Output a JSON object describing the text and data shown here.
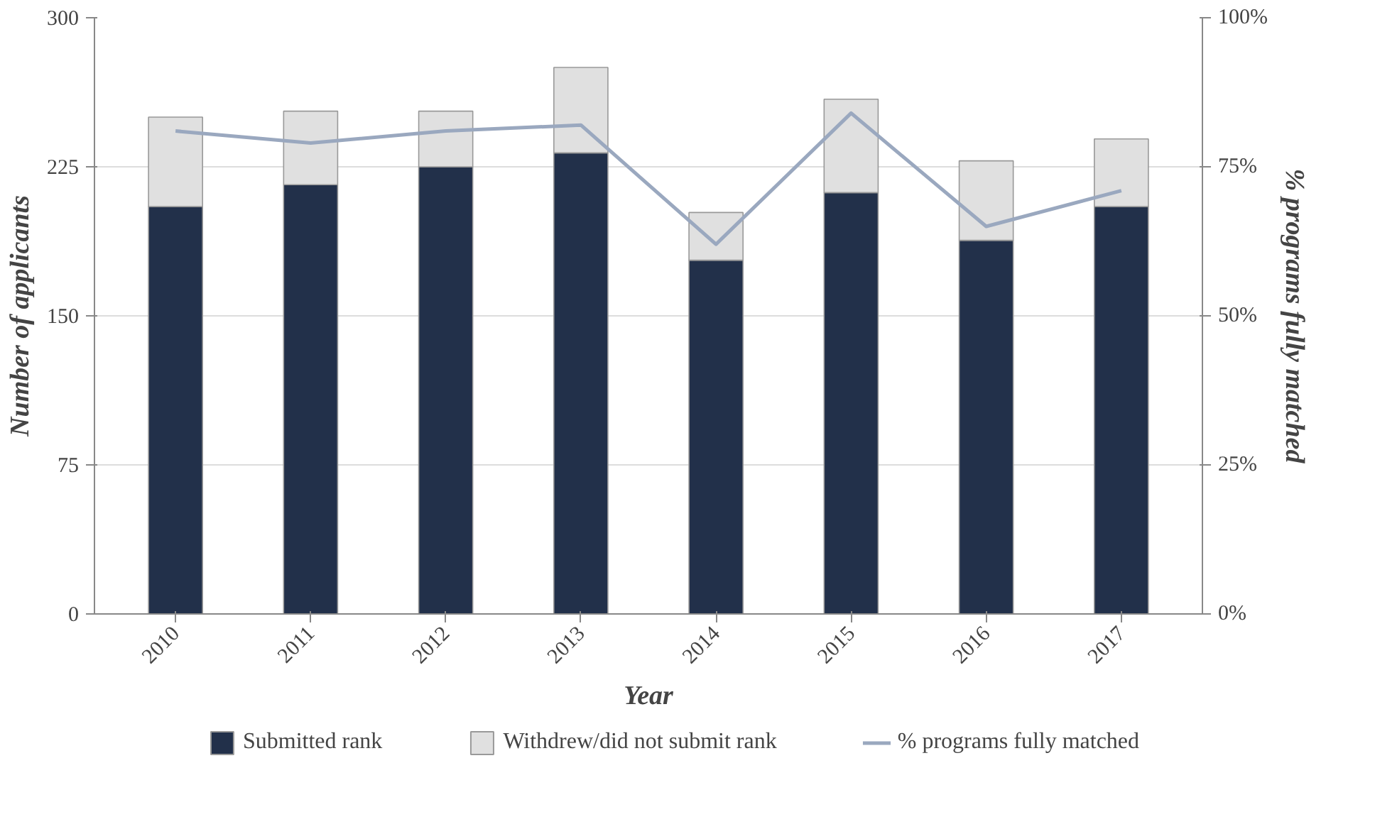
{
  "chart_data": {
    "type": "bar",
    "stacked": true,
    "xlabel": "Year",
    "ylabel": "Number of applicants",
    "y2label": "% programs fully matched",
    "categories": [
      "2010",
      "2011",
      "2012",
      "2013",
      "2014",
      "2015",
      "2016",
      "2017"
    ],
    "series": [
      {
        "name": "Submitted rank",
        "color": "#22304a",
        "values": [
          205,
          216,
          225,
          232,
          178,
          212,
          188,
          205
        ]
      },
      {
        "name": "Withdrew/did not submit rank",
        "color": "#e0e0e0",
        "values": [
          45,
          37,
          28,
          43,
          24,
          47,
          40,
          34
        ]
      },
      {
        "name": "% programs fully matched",
        "type": "line",
        "axis": "y2",
        "color": "#9aa8bf",
        "values": [
          81,
          79,
          81,
          82,
          62,
          84,
          65,
          71
        ]
      }
    ],
    "ylim": [
      0,
      300
    ],
    "yticks": [
      0,
      75,
      150,
      225,
      300
    ],
    "y2lim": [
      0,
      100
    ],
    "y2ticks": [
      {
        "value": 0,
        "label": "0%"
      },
      {
        "value": 25,
        "label": "25%"
      },
      {
        "value": 50,
        "label": "50%"
      },
      {
        "value": 75,
        "label": "75%"
      },
      {
        "value": 100,
        "label": "100%"
      }
    ],
    "grid": "y",
    "legend": "bottom"
  }
}
